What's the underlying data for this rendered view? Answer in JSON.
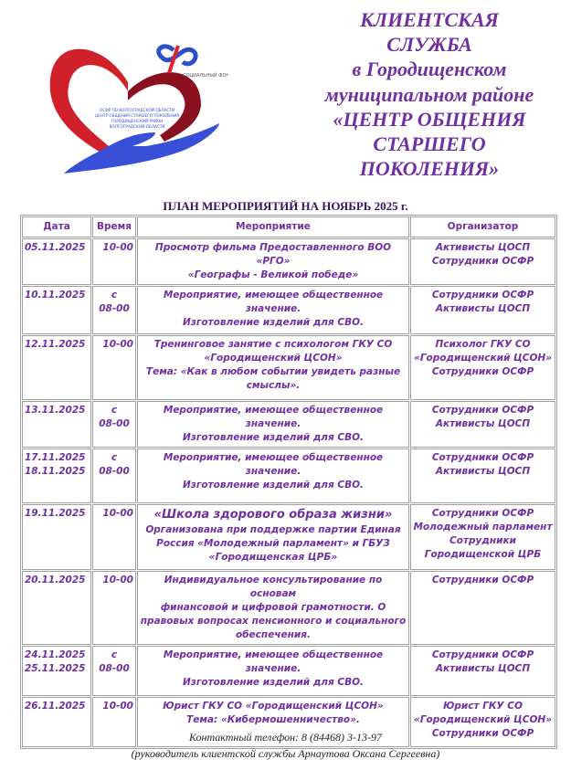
{
  "logo": {
    "text": "СОЦИАЛЬНЫЙ ФОНД РОССИИ",
    "inner_text": [
      "ОСФР ПО ВОЛГОГРАДСКОЙ ОБЛАСТИ",
      "ЦЕНТР ОБЩЕНИЯ СТАРШЕГО ПОКОЛЕНИЯ",
      "ГОРОДИЩЕНСКИЙ РАЙОН",
      "ВОЛГОГРАДСКОЙ ОБЛАСТИ"
    ]
  },
  "title": [
    "КЛИЕНТСКАЯ",
    "СЛУЖБА",
    "в Городищенском",
    "муниципальном районе",
    "«ЦЕНТР ОБЩЕНИЯ",
    "СТАРШЕГО",
    "ПОКОЛЕНИЯ»"
  ],
  "plan_heading": "ПЛАН МЕРОПРИЯТИЙ НА НОЯБРЬ 2025 г.",
  "colors": {
    "text": "#7030a0",
    "heart": "#d0202a",
    "hand": "#3a4fd8"
  },
  "table": {
    "headers": [
      "Дата",
      "Время",
      "Мероприятие",
      "Организатор"
    ],
    "rows": [
      {
        "date": [
          "05.11.2025"
        ],
        "time": [
          "10-00"
        ],
        "event": [
          "Просмотр фильма Предоставленного ВОО «РГО»",
          "«Географы - Великой победе»"
        ],
        "org": [
          "Активисты ЦОСП",
          "Сотрудники ОСФР"
        ]
      },
      {
        "date": [
          "10.11.2025"
        ],
        "time": [
          "с",
          "08-00"
        ],
        "event": [
          "Мероприятие, имеющее общественное значение.",
          "Изготовление изделий для СВО."
        ],
        "org": [
          "Сотрудники ОСФР",
          "Активисты ЦОСП"
        ]
      },
      {
        "date": [
          "12.11.2025"
        ],
        "time": [
          "10-00"
        ],
        "event": [
          "Тренинговое занятие с психологом ГКУ СО",
          "«Городищенский ЦСОН»",
          "Тема: «Как в любом событии увидеть разные",
          "смыслы»."
        ],
        "org": [
          "Психолог ГКУ СО",
          "«Городищенский ЦСОН»",
          "Сотрудники ОСФР"
        ]
      },
      {
        "date": [
          "13.11.2025"
        ],
        "time": [
          "с",
          "08-00"
        ],
        "event": [
          "Мероприятие, имеющее общественное значение.",
          "Изготовление изделий для СВО."
        ],
        "org": [
          "Сотрудники ОСФР",
          "Активисты ЦОСП"
        ]
      },
      {
        "date": [
          "17.11.2025",
          "18.11.2025"
        ],
        "time": [
          "с",
          "08-00"
        ],
        "event": [
          "Мероприятие, имеющее общественное значение.",
          "Изготовление изделий для СВО."
        ],
        "org": [
          "Сотрудники ОСФР",
          "Активисты ЦОСП"
        ]
      },
      {
        "date": [
          "19.11.2025"
        ],
        "time": [
          "10-00"
        ],
        "event_big": "«Школа здорового образа жизни»",
        "event": [
          "Организована при поддержке партии Единая",
          "Россия «Молодежный парламент» и ГБУЗ",
          "«Городищенская ЦРБ»"
        ],
        "org": [
          "Сотрудники ОСФР",
          "Молодежный парламент",
          "Сотрудники",
          "Городищенской ЦРБ"
        ]
      },
      {
        "date": [
          "20.11.2025"
        ],
        "time": [
          "10-00"
        ],
        "event": [
          "Индивидуальное консультирование по основам",
          "финансовой и цифровой грамотности. О",
          "правовых вопросах пенсионного и социального",
          "обеспечения."
        ],
        "org": [
          "Сотрудники ОСФР"
        ]
      },
      {
        "date": [
          "24.11.2025",
          "25.11.2025"
        ],
        "time": [
          "с",
          "08-00"
        ],
        "event": [
          "Мероприятие, имеющее общественное значение.",
          "Изготовление изделий для СВО."
        ],
        "org": [
          "Сотрудники ОСФР",
          "Активисты ЦОСП"
        ]
      },
      {
        "date": [
          "26.11.2025"
        ],
        "time": [
          "10-00"
        ],
        "event": [
          "Юрист ГКУ СО «Городищенский ЦСОН»",
          "Тема: «Кибермошенничество»."
        ],
        "org": [
          "Юрист ГКУ СО",
          "«Городищенский ЦСОН»",
          "Сотрудники ОСФР"
        ]
      }
    ]
  },
  "footer": {
    "phone": "Контактный телефон: 8 (84468) 3-13-97",
    "head": "(руководитель клиентской службы Арнаутова Оксана Сергеевна)"
  }
}
